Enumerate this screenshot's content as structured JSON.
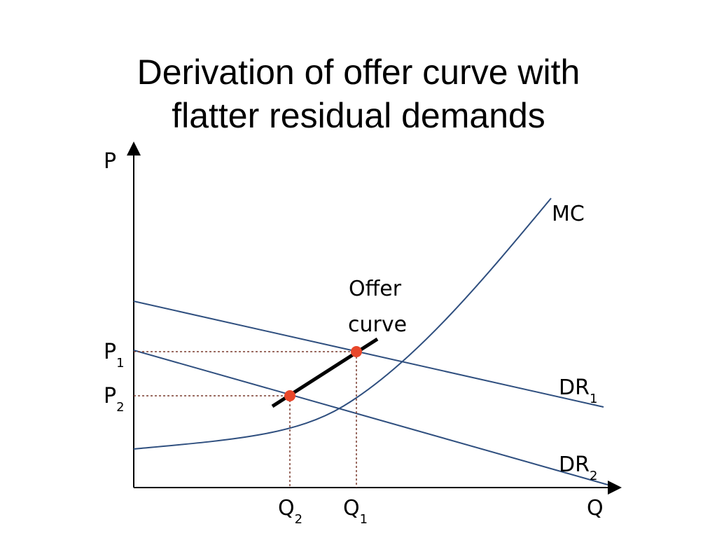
{
  "title": {
    "line1": "Derivation of offer curve with",
    "line2": "flatter residual demands"
  },
  "axes": {
    "y_label": "P",
    "x_label": "Q"
  },
  "curves": {
    "mc_label": "MC",
    "offer_label_line1": "Offer",
    "offer_label_line2": "curve",
    "dr1_label": "DR",
    "dr1_sub": "1",
    "dr2_label": "DR",
    "dr2_sub": "2"
  },
  "price_ticks": [
    {
      "label": "P",
      "sub": "1"
    },
    {
      "label": "P",
      "sub": "2"
    }
  ],
  "quantity_ticks": [
    {
      "label": "Q",
      "sub": "2"
    },
    {
      "label": "Q",
      "sub": "1"
    }
  ],
  "colors": {
    "curve": "#2f4f7f",
    "offer": "#000000",
    "point": "#e8472b",
    "guide": "#7a3b2e",
    "axis": "#000000"
  }
}
